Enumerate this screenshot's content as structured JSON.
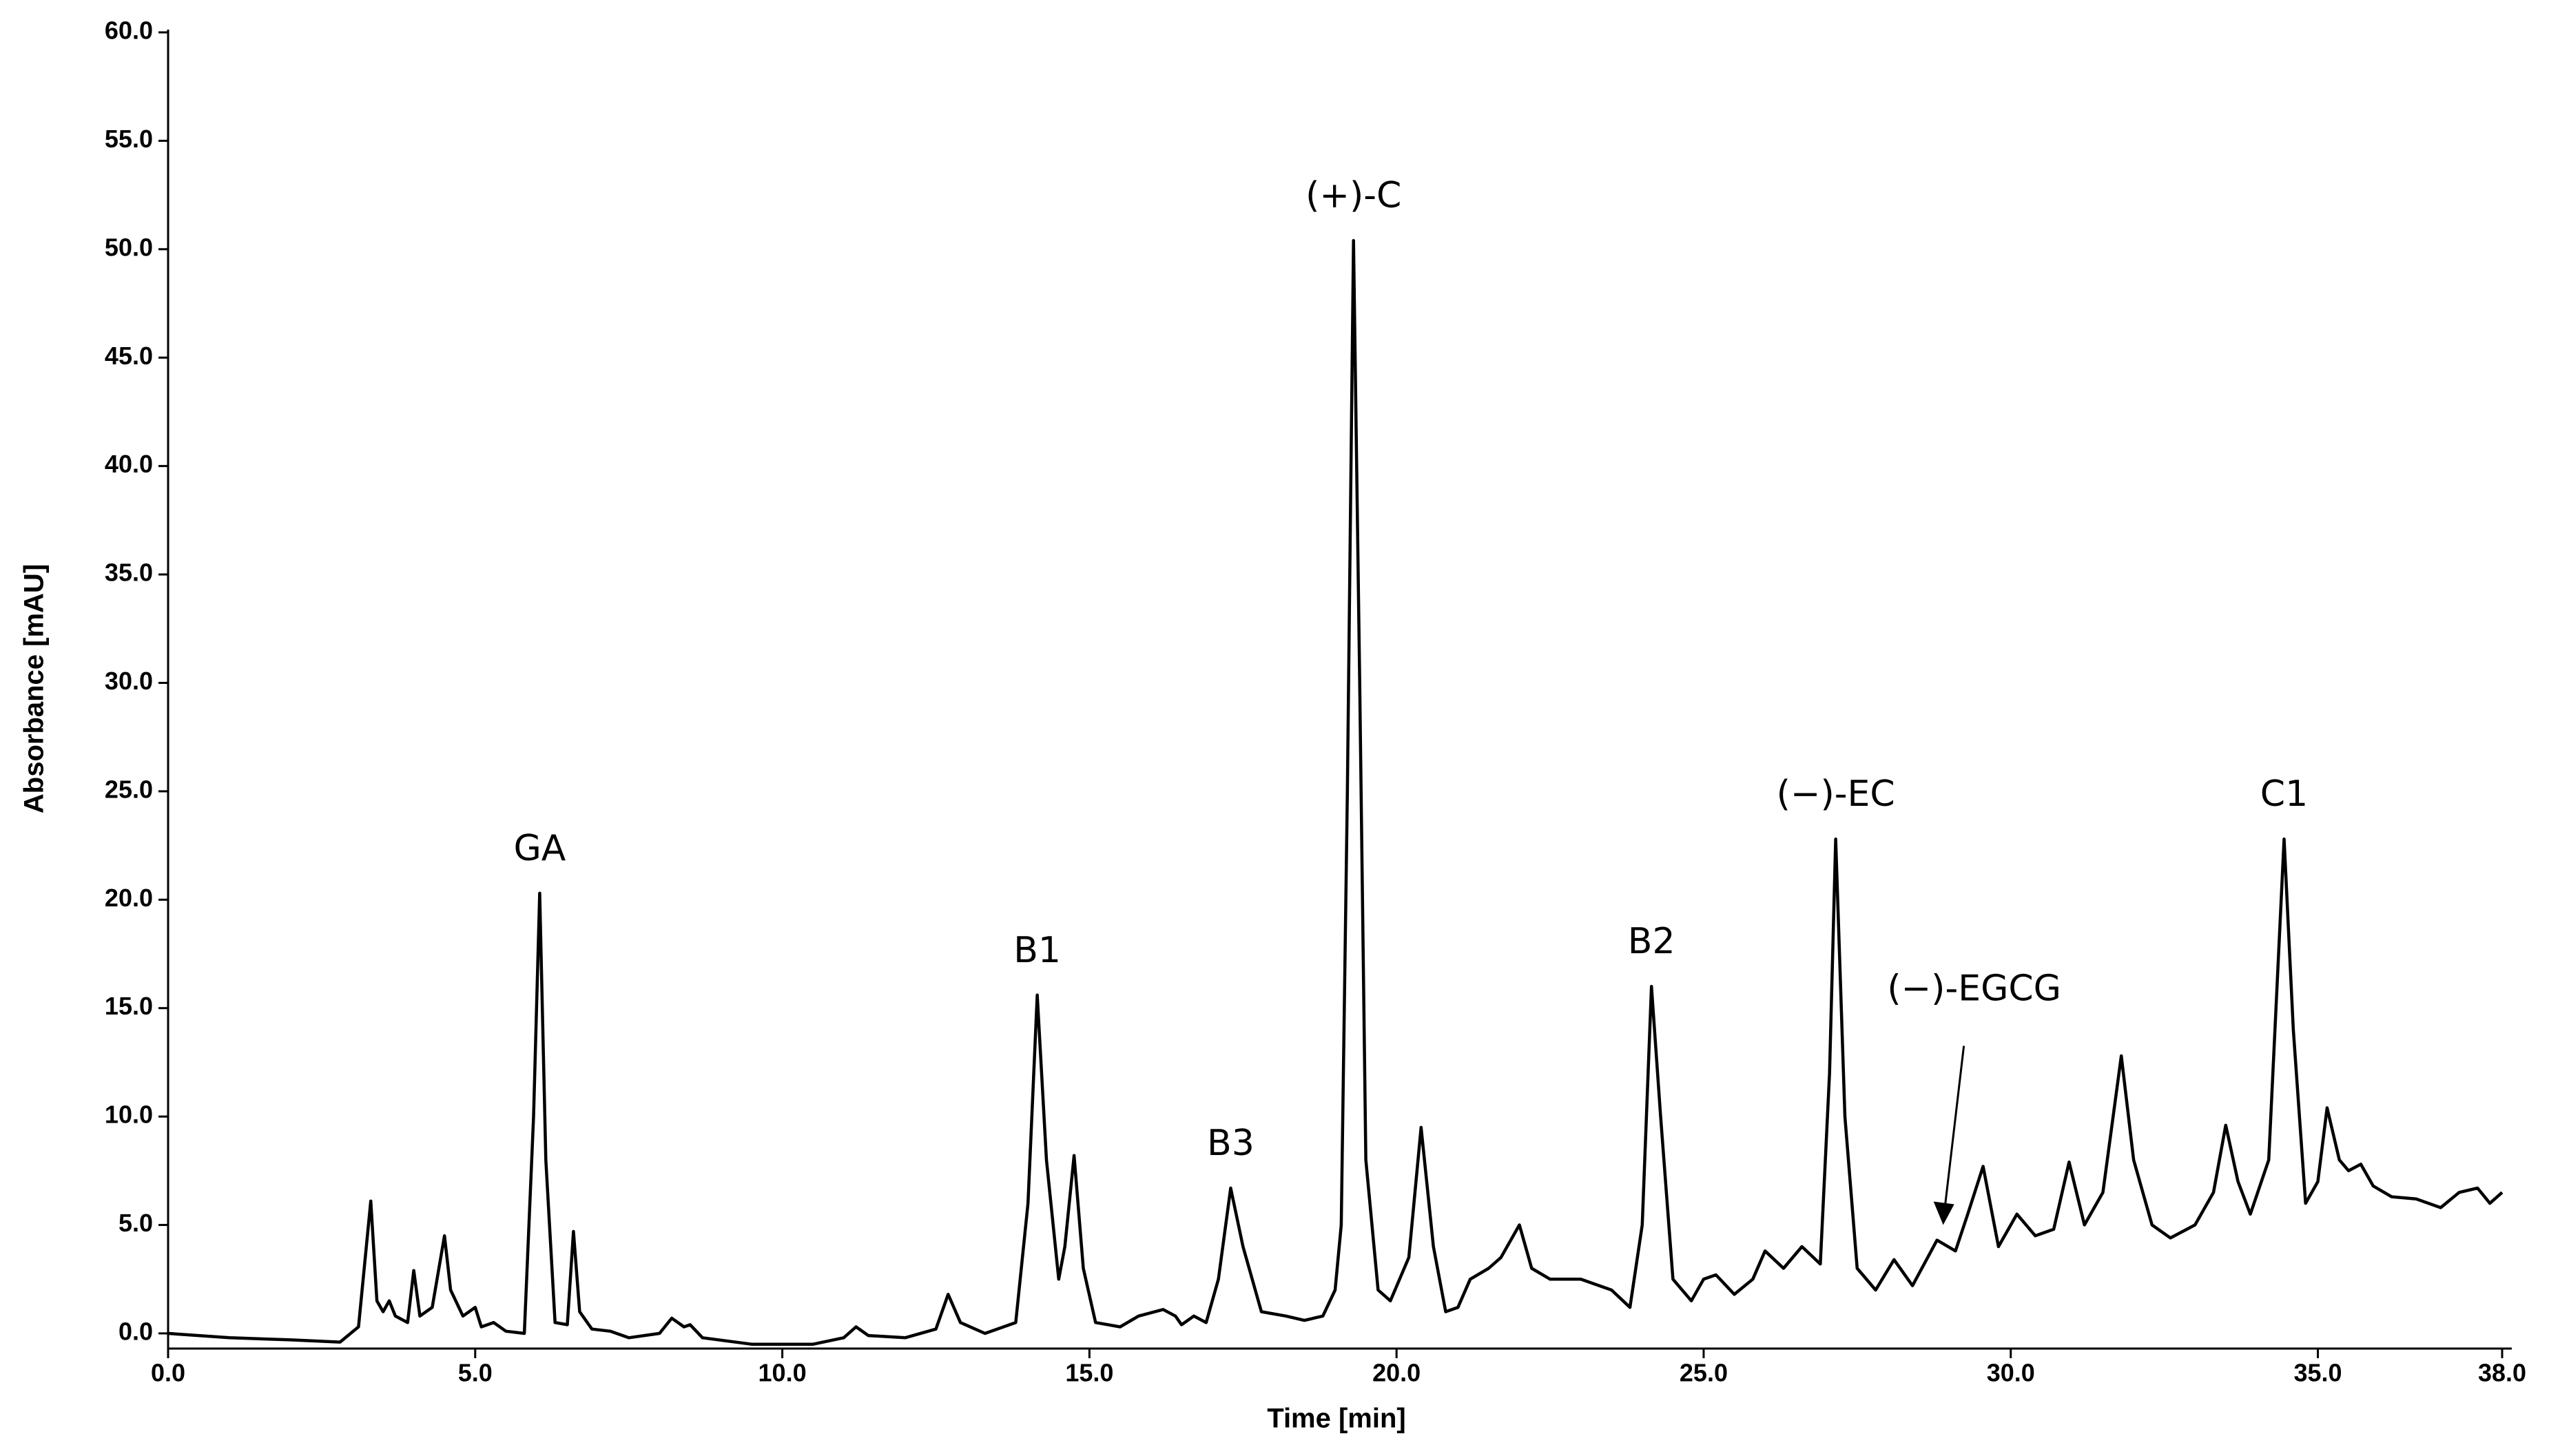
{
  "chart_data": {
    "type": "line",
    "xlabel": "Time [min]",
    "ylabel": "Absorbance [mAU]",
    "color": "#000000",
    "grid": false,
    "xlim": [
      0,
      38
    ],
    "ylim": [
      -0.7,
      60
    ],
    "xticks": [
      {
        "value": 0,
        "label": "0.0"
      },
      {
        "value": 5,
        "label": "5.0"
      },
      {
        "value": 10,
        "label": "10.0"
      },
      {
        "value": 15,
        "label": "15.0"
      },
      {
        "value": 20,
        "label": "20.0"
      },
      {
        "value": 25,
        "label": "25.0"
      },
      {
        "value": 30,
        "label": "30.0"
      },
      {
        "value": 35,
        "label": "35.0"
      },
      {
        "value": 38,
        "label": "38.0"
      }
    ],
    "yticks": [
      {
        "value": 0,
        "label": "0.0"
      },
      {
        "value": 5,
        "label": "5.0"
      },
      {
        "value": 10,
        "label": "10.0"
      },
      {
        "value": 15,
        "label": "15.0"
      },
      {
        "value": 20,
        "label": "20.0"
      },
      {
        "value": 25,
        "label": "25.0"
      },
      {
        "value": 30,
        "label": "30.0"
      },
      {
        "value": 35,
        "label": "35.0"
      },
      {
        "value": 40,
        "label": "40.0"
      },
      {
        "value": 45,
        "label": "45.0"
      },
      {
        "value": 50,
        "label": "50.0"
      },
      {
        "value": 55,
        "label": "55.0"
      },
      {
        "value": 60,
        "label": "60.0"
      }
    ],
    "x": [
      0,
      1,
      2,
      2.8,
      3.1,
      3.3,
      3.4,
      3.5,
      3.6,
      3.7,
      3.9,
      4.0,
      4.1,
      4.3,
      4.5,
      4.6,
      4.8,
      5.0,
      5.1,
      5.3,
      5.5,
      5.8,
      5.95,
      6.05,
      6.15,
      6.3,
      6.5,
      6.6,
      6.7,
      6.9,
      7.2,
      7.5,
      8.0,
      8.2,
      8.4,
      8.5,
      8.7,
      9.5,
      10.5,
      11.0,
      11.2,
      11.4,
      12.0,
      12.5,
      12.7,
      12.9,
      13.3,
      13.8,
      14.0,
      14.15,
      14.3,
      14.5,
      14.6,
      14.75,
      14.9,
      15.1,
      15.5,
      15.8,
      16.2,
      16.4,
      16.5,
      16.7,
      16.9,
      17.1,
      17.3,
      17.5,
      17.8,
      18.2,
      18.5,
      18.8,
      19.0,
      19.1,
      19.2,
      19.3,
      19.4,
      19.5,
      19.7,
      19.9,
      20.2,
      20.4,
      20.6,
      20.8,
      21.0,
      21.2,
      21.5,
      21.7,
      22.0,
      22.2,
      22.5,
      23.0,
      23.5,
      23.8,
      24.0,
      24.15,
      24.3,
      24.5,
      24.8,
      25.0,
      25.2,
      25.5,
      25.8,
      26.0,
      26.3,
      26.6,
      26.9,
      27.05,
      27.15,
      27.3,
      27.5,
      27.8,
      28.1,
      28.4,
      28.8,
      29.1,
      29.3,
      29.55,
      29.8,
      30.1,
      30.4,
      30.7,
      30.95,
      31.2,
      31.5,
      31.8,
      32.0,
      32.3,
      32.6,
      33.0,
      33.3,
      33.5,
      33.7,
      33.9,
      34.2,
      34.45,
      34.6,
      34.8,
      35.0,
      35.15,
      35.35,
      35.5,
      35.7,
      35.9,
      36.2,
      36.6,
      37.0,
      37.3,
      37.6,
      37.8,
      38.0
    ],
    "values": [
      0.0,
      -0.2,
      -0.3,
      -0.4,
      0.3,
      6.1,
      1.5,
      1.0,
      1.5,
      0.8,
      0.5,
      2.9,
      0.8,
      1.2,
      4.5,
      2.0,
      0.8,
      1.2,
      0.3,
      0.5,
      0.1,
      0.0,
      10,
      20.3,
      8,
      0.5,
      0.4,
      4.7,
      1.0,
      0.2,
      0.1,
      -0.2,
      0.0,
      0.7,
      0.3,
      0.4,
      -0.2,
      -0.5,
      -0.5,
      -0.2,
      0.3,
      -0.1,
      -0.2,
      0.2,
      1.8,
      0.5,
      0.0,
      0.5,
      6,
      15.6,
      8,
      2.5,
      4,
      8.2,
      3,
      0.5,
      0.3,
      0.8,
      1.1,
      0.8,
      0.4,
      0.8,
      0.5,
      2.5,
      6.7,
      4,
      1.0,
      0.8,
      0.6,
      0.8,
      2.0,
      5,
      25,
      50.4,
      30,
      8,
      2,
      1.5,
      3.5,
      9.5,
      4,
      1.0,
      1.2,
      2.5,
      3.0,
      3.5,
      5.0,
      3.0,
      2.5,
      2.5,
      2.0,
      1.2,
      5,
      16.0,
      10,
      2.5,
      1.5,
      2.5,
      2.7,
      1.8,
      2.5,
      3.8,
      3.0,
      4.0,
      3.2,
      12,
      22.8,
      10,
      3,
      2.0,
      3.4,
      2.2,
      4.3,
      3.8,
      5.5,
      7.7,
      4.0,
      5.5,
      4.5,
      4.8,
      7.9,
      5.0,
      6.5,
      12.8,
      8,
      5.0,
      4.4,
      5.0,
      6.5,
      9.6,
      7,
      5.5,
      8,
      22.8,
      14,
      6,
      7,
      10.4,
      8,
      7.5,
      7.8,
      6.8,
      6.3,
      6.2,
      5.8,
      6.5,
      6.7,
      6.0,
      6.5
    ],
    "annotations": [
      {
        "text": "GA",
        "x": 6.05,
        "y": 20.3
      },
      {
        "text": "B1",
        "x": 14.15,
        "y": 15.6
      },
      {
        "text": "B3",
        "x": 17.3,
        "y": 6.7
      },
      {
        "text": "(+)-C",
        "x": 19.3,
        "y": 50.4
      },
      {
        "text": "B2",
        "x": 24.15,
        "y": 16.0
      },
      {
        "text": "(−)-EC",
        "x": 27.15,
        "y": 22.8
      },
      {
        "text": "(−)-EGCG",
        "x": 28.9,
        "y": 5.0,
        "arrow": true
      },
      {
        "text": "C1",
        "x": 34.45,
        "y": 22.8
      }
    ]
  }
}
